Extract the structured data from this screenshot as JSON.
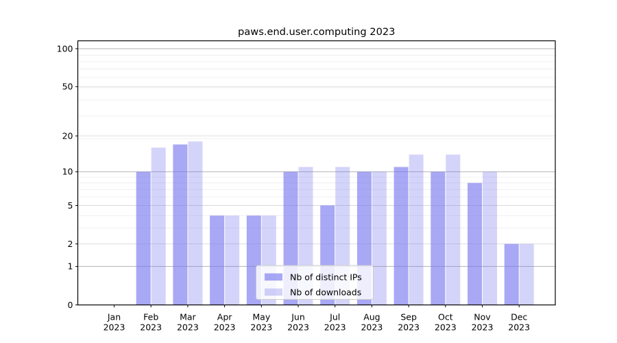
{
  "chart_data": {
    "type": "bar",
    "title": "paws.end.user.computing 2023",
    "categories": [
      "Jan",
      "Feb",
      "Mar",
      "Apr",
      "May",
      "Jun",
      "Jul",
      "Aug",
      "Sep",
      "Oct",
      "Nov",
      "Dec"
    ],
    "category_year": "2023",
    "series": [
      {
        "name": "Nb of distinct IPs",
        "values": [
          0,
          10,
          17,
          4,
          4,
          10,
          5,
          10,
          11,
          10,
          8,
          2
        ],
        "color": "#7a7af0",
        "fill_opacity": 0.65
      },
      {
        "name": "Nb of downloads",
        "values": [
          0,
          16,
          18,
          4,
          4,
          11,
          11,
          10,
          14,
          14,
          10,
          2
        ],
        "color": "#7a7af0",
        "fill_opacity": 0.32
      }
    ],
    "y_scale": "log1p",
    "ylim": [
      0,
      115
    ],
    "y_ticks": [
      0,
      1,
      2,
      5,
      10,
      20,
      50,
      100
    ],
    "y_gridlines": {
      "major": [
        1,
        10,
        100
      ],
      "mid": [
        2,
        5,
        20,
        50
      ],
      "minor": [
        3,
        4,
        6,
        7,
        8,
        9,
        19,
        29,
        39,
        49,
        59,
        69,
        79,
        89
      ]
    },
    "grid": true,
    "legend_position": "lower center",
    "colors": {
      "bar_base": "#7a7af0",
      "grid_major": "#b2b2b2",
      "grid_mid": "#d9d9d9",
      "grid_minor": "#ececec",
      "frame": "#000000",
      "legend_border": "#cccccc"
    }
  }
}
